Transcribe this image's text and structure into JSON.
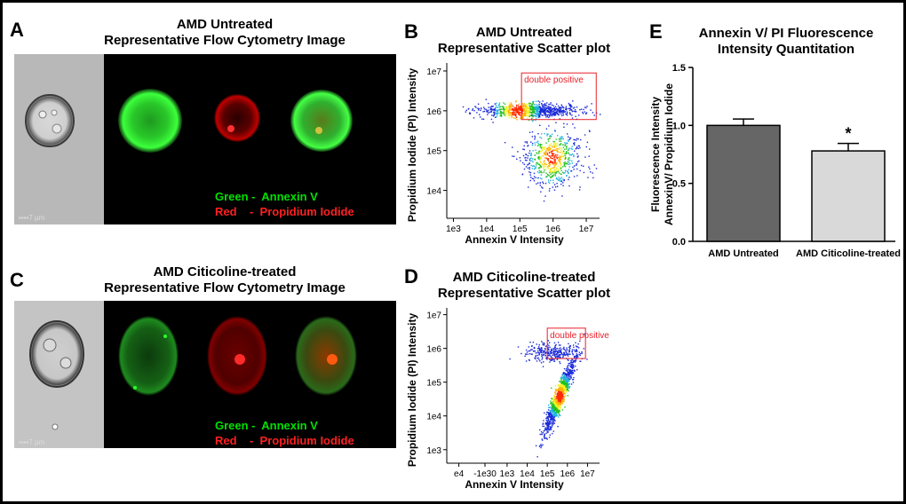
{
  "panels": {
    "A": {
      "letter": "A",
      "title_line1": "AMD Untreated",
      "title_line2": "Representative Flow Cytometry Image",
      "legend_green": "Green -  Annexin V",
      "legend_red": "Red    -  Propidium Iodide",
      "scale_label": "7 µm"
    },
    "C": {
      "letter": "C",
      "title_line1": "AMD Citicoline-treated",
      "title_line2": "Representative Flow Cytometry Image",
      "legend_green": "Green -  Annexin V",
      "legend_red": "Red    -  Propidium Iodide",
      "scale_label": "7 µm"
    },
    "B": {
      "letter": "B"
    },
    "D": {
      "letter": "D"
    },
    "E": {
      "letter": "E"
    }
  },
  "colors": {
    "green": "#00e000",
    "red": "#ff2020",
    "gate": "#e8202a",
    "bar_dark": "#666666",
    "bar_light": "#d9d9d9"
  },
  "chart_data": [
    {
      "id": "B",
      "type": "scatter",
      "title": "AMD Untreated\nRepresentative Scatter plot",
      "title_lines": [
        "AMD Untreated",
        "Representative Scatter plot"
      ],
      "xlabel": "Annexin V Intensity",
      "ylabel": "Propidium Iodide (PI) Intensity",
      "x_ticks": [
        "1e3",
        "1e4",
        "1e5",
        "1e6",
        "1e7"
      ],
      "y_ticks": [
        "1e7",
        "1e6",
        "1e5",
        "1e4"
      ],
      "xlim_log10": [
        2.8,
        7.4
      ],
      "ylim_log10": [
        3.3,
        7.2
      ],
      "gate": {
        "label": "double positive",
        "x_log10": [
          5.05,
          7.3
        ],
        "y_log10": [
          5.78,
          6.95
        ]
      },
      "clusters": [
        {
          "name": "upper band",
          "x_log10_center": 5.3,
          "x_log10_sd": 0.75,
          "y_log10_center": 6.02,
          "y_log10_sd": 0.09,
          "points": 900,
          "hot_center": [
            4.9,
            6.02
          ]
        },
        {
          "name": "lower cluster",
          "x_log10_center": 5.95,
          "x_log10_sd": 0.45,
          "y_log10_center": 4.8,
          "y_log10_sd": 0.35,
          "points": 650,
          "hot_center": [
            5.95,
            4.85
          ]
        }
      ]
    },
    {
      "id": "D",
      "type": "scatter",
      "title": "AMD Citicoline-treated\nRepresentative Scatter plot",
      "title_lines": [
        "AMD Citicoline-treated",
        "Representative Scatter plot"
      ],
      "xlabel": "Annexin V Intensity",
      "ylabel": "Propidium Iodide (PI) Intensity",
      "x_ticks": [
        "e4",
        "-1e30",
        "1e3",
        "1e4",
        "1e5",
        "1e6",
        "1e7"
      ],
      "y_ticks": [
        "1e7",
        "1e6",
        "1e5",
        "1e4",
        "1e3"
      ],
      "xlim_log10": [
        0.0,
        7.6
      ],
      "ylim_log10": [
        2.6,
        7.2
      ],
      "gate": {
        "label": "double positive",
        "x_log10": [
          5.0,
          6.9
        ],
        "y_log10": [
          5.7,
          6.6
        ]
      },
      "clusters": [
        {
          "name": "upper band",
          "x_log10_center": 5.2,
          "x_log10_sd": 0.7,
          "y_log10_center": 5.9,
          "y_log10_sd": 0.12,
          "points": 300,
          "hot_center": null
        },
        {
          "name": "diagonal cluster",
          "x_log10_center": 5.55,
          "x_log10_sd": 0.35,
          "y_log10_center": 4.55,
          "y_log10_sd": 0.4,
          "points": 1100,
          "hot_center": [
            5.6,
            4.6
          ]
        }
      ]
    },
    {
      "id": "E",
      "type": "bar",
      "title": "Annexin V/ PI Fluorescence\nIntensity  Quantitation",
      "title_lines": [
        "Annexin V/ PI Fluorescence",
        "Intensity  Quantitation"
      ],
      "ylabel": "Fluorescence Intensity\nAnnexinV/ Propidium Iodide",
      "ylabel_lines": [
        "Fluorescence Intensity",
        "AnnexinV/ Propidium Iodide"
      ],
      "categories": [
        "AMD Untreated",
        "AMD Citicoline-treated"
      ],
      "values": [
        1.0,
        0.78
      ],
      "errors": [
        0.055,
        0.065
      ],
      "annotations": [
        "",
        "*"
      ],
      "ylim": [
        0.0,
        1.5
      ],
      "y_ticks": [
        "0.0",
        "0.5",
        "1.0",
        "1.5"
      ]
    }
  ]
}
